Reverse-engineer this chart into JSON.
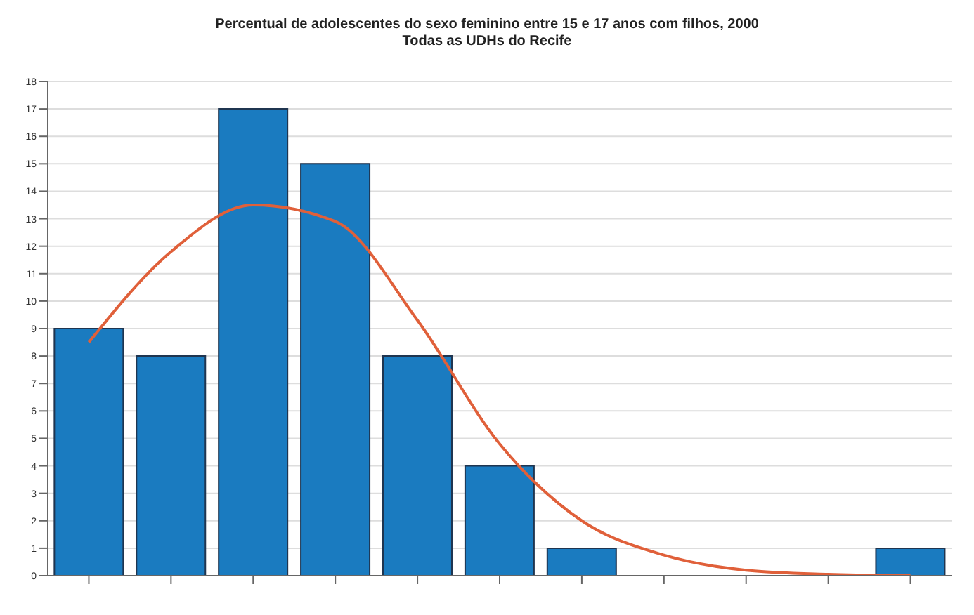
{
  "chart_data": {
    "type": "bar",
    "title": "Percentual de adolescentes do sexo feminino entre 15 e 17 anos com filhos, 2000",
    "subtitle": "Todas as UDHs do Recife",
    "categories": [
      null,
      null,
      null,
      null,
      null,
      null,
      null,
      null,
      null,
      null,
      null
    ],
    "series": [
      {
        "color": "#1a7bc0",
        "values": [
          9,
          8,
          17,
          15,
          8,
          4,
          1,
          0,
          0,
          0,
          1
        ]
      },
      {
        "type": "line",
        "color": "#e0603a",
        "values": [
          8.5,
          11.8,
          13.5,
          12.9,
          9.3,
          4.8,
          2.0,
          0.75,
          0.2,
          0.05,
          0
        ]
      }
    ],
    "ylim": [
      0,
      18
    ],
    "yticks": [
      0,
      1,
      2,
      3,
      4,
      5,
      6,
      7,
      8,
      9,
      10,
      11,
      12,
      13,
      14,
      15,
      16,
      17,
      18
    ],
    "grid": "y",
    "marker": "none",
    "line_style": "solid"
  }
}
